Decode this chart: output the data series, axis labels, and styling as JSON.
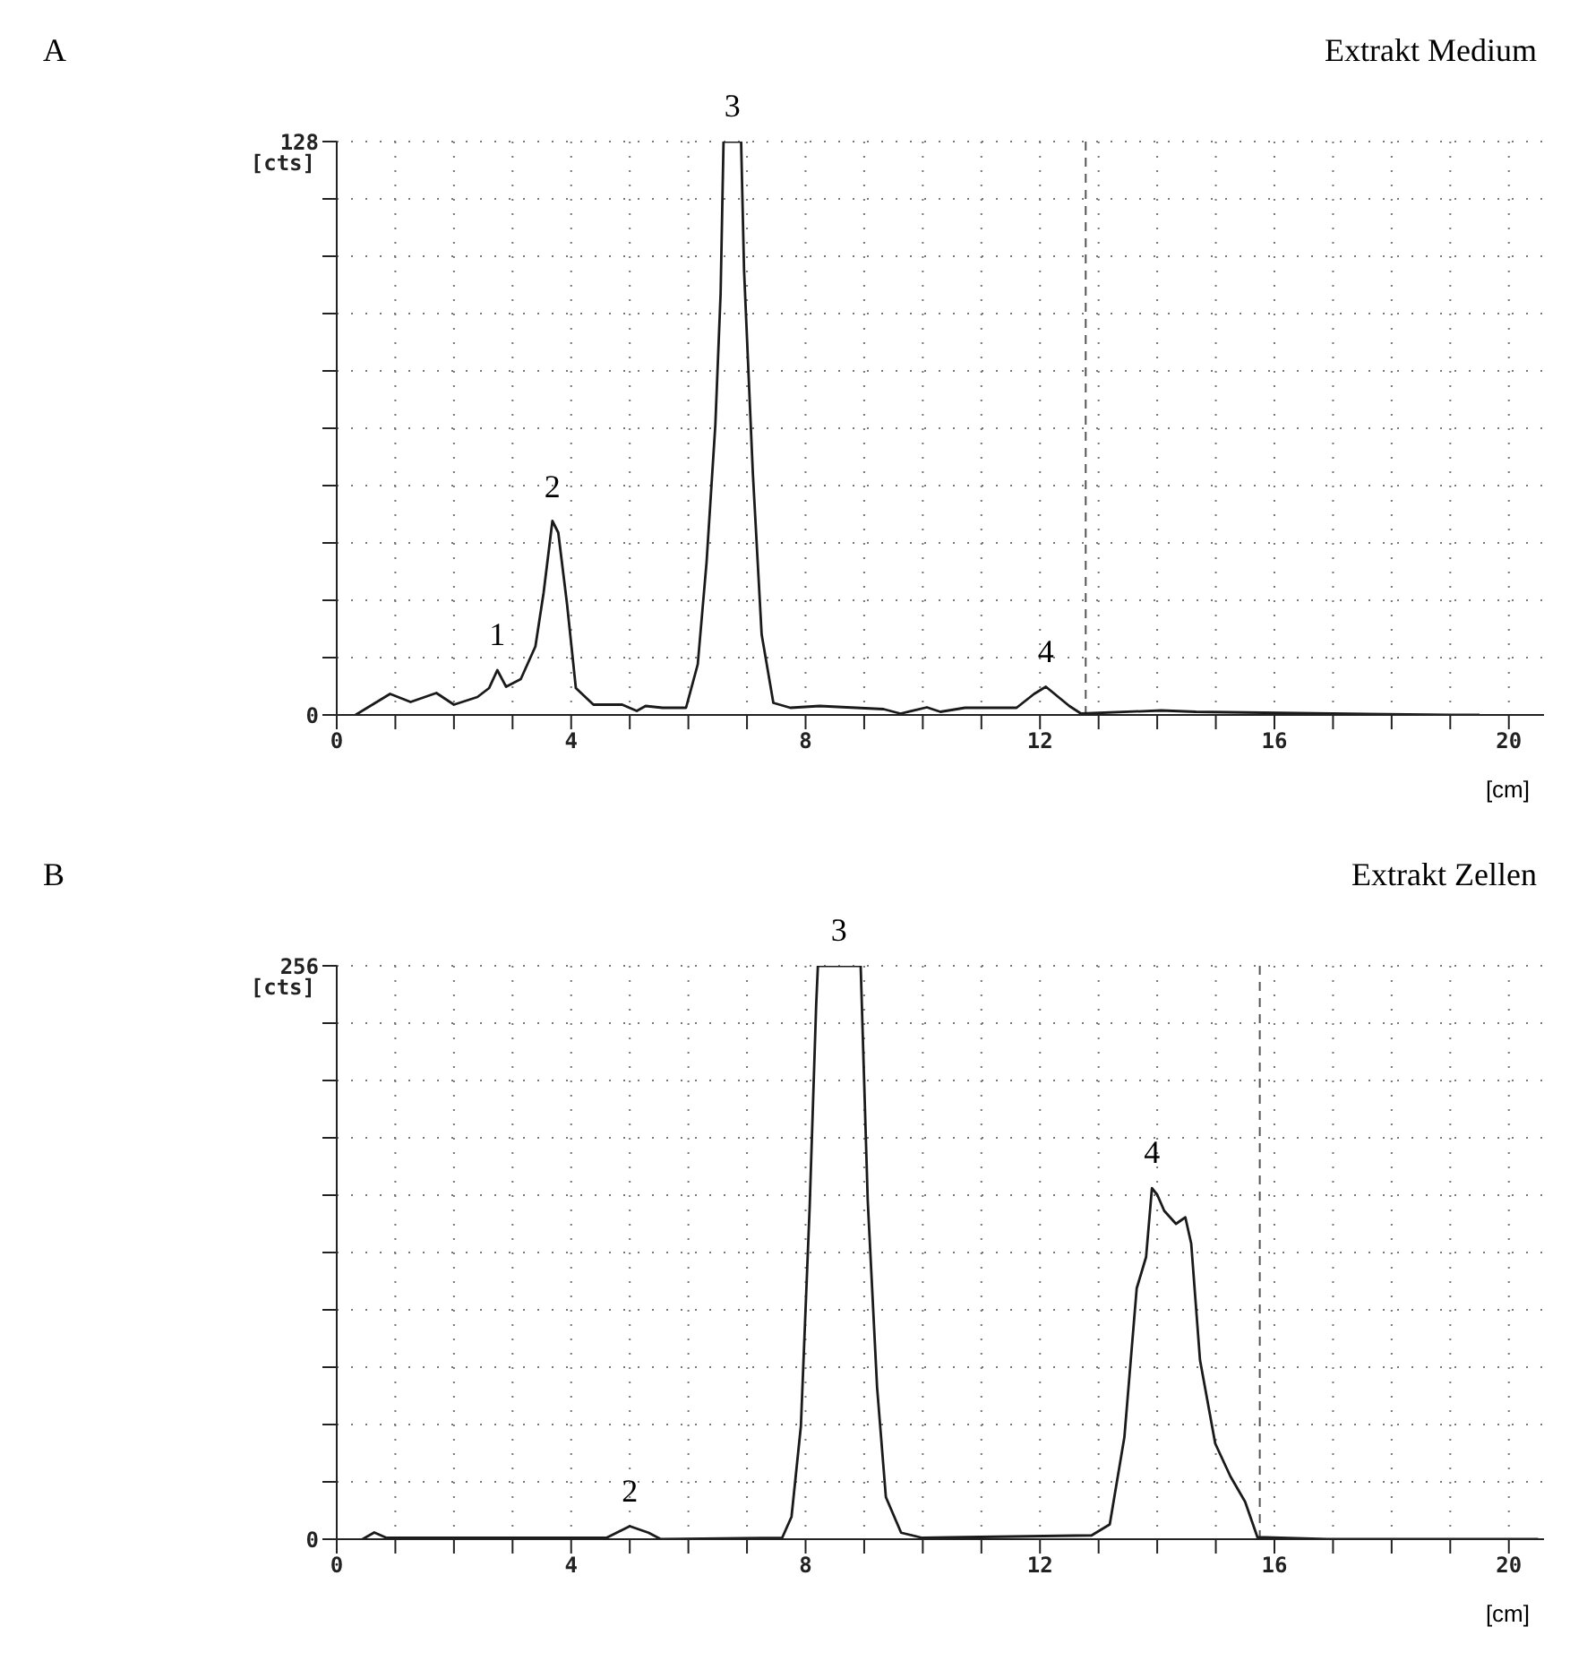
{
  "chart_data": [
    {
      "type": "line",
      "title": "Extrakt Medium",
      "ylabel": "[cts]",
      "xlabel": "[cm]",
      "annotations": [
        "A",
        {
          "text": "1",
          "x": 2.74,
          "y": 10
        },
        {
          "text": "2",
          "x": 3.68,
          "y": 43
        },
        {
          "text": "3",
          "x": 6.75,
          "y": 128
        },
        {
          "text": "4",
          "x": 12.1,
          "y": 6.3
        }
      ],
      "series": [
        {
          "color": "#1a1a1a",
          "x": [
            0.32,
            0.91,
            1.26,
            1.7,
            2.0,
            2.4,
            2.6,
            2.74,
            2.89,
            3.14,
            3.39,
            3.53,
            3.68,
            3.78,
            3.93,
            4.08,
            4.38,
            4.87,
            5.12,
            5.27,
            5.56,
            5.96,
            6.16,
            6.31,
            6.46,
            6.55,
            6.6,
            6.9,
            6.95,
            7.1,
            7.25,
            7.45,
            7.74,
            8.24,
            9.33,
            9.62,
            10.07,
            10.3,
            10.72,
            11.6,
            11.9,
            12.1,
            12.5,
            12.7,
            14.07,
            14.66,
            16.4,
            19.0,
            19.5
          ],
          "values": [
            0,
            4.7,
            2.9,
            4.9,
            2.3,
            4,
            6,
            10,
            6.3,
            8,
            15.3,
            27.3,
            43.3,
            40.7,
            24.7,
            6,
            2.3,
            2.3,
            0.9,
            2,
            1.6,
            1.6,
            11.3,
            34,
            64.7,
            94,
            128,
            128,
            99.3,
            54,
            18,
            2.7,
            1.6,
            2,
            1.3,
            0.3,
            1.7,
            0.7,
            1.6,
            1.6,
            4.7,
            6.3,
            2,
            0.3,
            1,
            0.7,
            0.4,
            0,
            0
          ]
        }
      ],
      "xlim": [
        0,
        20.6
      ],
      "xticks": [
        0,
        {
          "value": 1,
          "label": null
        },
        {
          "value": 2,
          "label": null
        },
        {
          "value": 3,
          "label": null
        },
        4,
        {
          "value": 5,
          "label": null
        },
        {
          "value": 6,
          "label": null
        },
        {
          "value": 7,
          "label": null
        },
        8,
        {
          "value": 9,
          "label": null
        },
        {
          "value": 10,
          "label": null
        },
        {
          "value": 11,
          "label": null
        },
        12,
        {
          "value": 13,
          "label": null
        },
        {
          "value": 14,
          "label": null
        },
        {
          "value": 15,
          "label": null
        },
        16,
        {
          "value": 17,
          "label": null
        },
        {
          "value": 18,
          "label": null
        },
        {
          "value": 19,
          "label": null
        },
        20
      ],
      "ylim": [
        0,
        128
      ],
      "yticks": [
        0,
        {
          "value": 12.8,
          "label": null
        },
        {
          "value": 25.6,
          "label": null
        },
        {
          "value": 38.4,
          "label": null
        },
        {
          "value": 51.2,
          "label": null
        },
        {
          "value": 64,
          "label": null
        },
        {
          "value": 76.8,
          "label": null
        },
        {
          "value": 89.6,
          "label": null
        },
        {
          "value": 102.4,
          "label": null
        },
        {
          "value": 115.2,
          "label": null
        },
        128
      ],
      "grid": true,
      "marker": "none",
      "line_style": "solid",
      "ref_lines": [
        {
          "axis": "x",
          "value": 12.78,
          "color": "#555555",
          "line_style": "dashed"
        }
      ]
    },
    {
      "type": "line",
      "title": "Extrakt Zellen",
      "ylabel": "[cts]",
      "xlabel": "[cm]",
      "annotations": [
        "B",
        {
          "text": "2",
          "x": 5.0,
          "y": 5.8
        },
        {
          "text": "3",
          "x": 8.57,
          "y": 256
        },
        {
          "text": "4",
          "x": 13.91,
          "y": 156.7
        }
      ],
      "series": [
        {
          "color": "#1a1a1a",
          "x": [
            0.44,
            0.64,
            0.85,
            4.6,
            5.0,
            5.32,
            5.53,
            7.6,
            7.76,
            7.92,
            8.07,
            8.18,
            8.21,
            8.94,
            9.06,
            9.22,
            9.37,
            9.63,
            9.99,
            10.71,
            12.88,
            13.19,
            13.44,
            13.65,
            13.81,
            13.91,
            14.0,
            14.12,
            14.32,
            14.48,
            14.58,
            14.73,
            14.99,
            15.25,
            15.5,
            15.71,
            16.9,
            20.5
          ],
          "values": [
            0,
            3,
            0.6,
            0.6,
            5.8,
            2.9,
            0,
            0.6,
            10,
            50.5,
            148.6,
            238,
            256,
            256,
            151.5,
            67.8,
            18.8,
            2.9,
            0.6,
            0.9,
            1.7,
            6.6,
            45.6,
            112,
            126,
            156.7,
            153.8,
            146.6,
            140.8,
            143.7,
            132,
            80,
            42.7,
            28,
            16.7,
            0.9,
            0,
            0
          ]
        }
      ],
      "xlim": [
        0,
        20.6
      ],
      "xticks": [
        0,
        {
          "value": 1,
          "label": null
        },
        {
          "value": 2,
          "label": null
        },
        {
          "value": 3,
          "label": null
        },
        4,
        {
          "value": 5,
          "label": null
        },
        {
          "value": 6,
          "label": null
        },
        {
          "value": 7,
          "label": null
        },
        8,
        {
          "value": 9,
          "label": null
        },
        {
          "value": 10,
          "label": null
        },
        {
          "value": 11,
          "label": null
        },
        12,
        {
          "value": 13,
          "label": null
        },
        {
          "value": 14,
          "label": null
        },
        {
          "value": 15,
          "label": null
        },
        16,
        {
          "value": 17,
          "label": null
        },
        {
          "value": 18,
          "label": null
        },
        {
          "value": 19,
          "label": null
        },
        20
      ],
      "ylim": [
        0,
        256
      ],
      "yticks": [
        0,
        {
          "value": 25.6,
          "label": null
        },
        {
          "value": 51.2,
          "label": null
        },
        {
          "value": 76.8,
          "label": null
        },
        {
          "value": 102.4,
          "label": null
        },
        {
          "value": 128,
          "label": null
        },
        {
          "value": 153.6,
          "label": null
        },
        {
          "value": 179.2,
          "label": null
        },
        {
          "value": 204.8,
          "label": null
        },
        {
          "value": 230.4,
          "label": null
        },
        256
      ],
      "grid": true,
      "marker": "none",
      "line_style": "solid",
      "ref_lines": [
        {
          "axis": "x",
          "value": 15.75,
          "color": "#555555",
          "line_style": "dashed"
        }
      ]
    }
  ]
}
